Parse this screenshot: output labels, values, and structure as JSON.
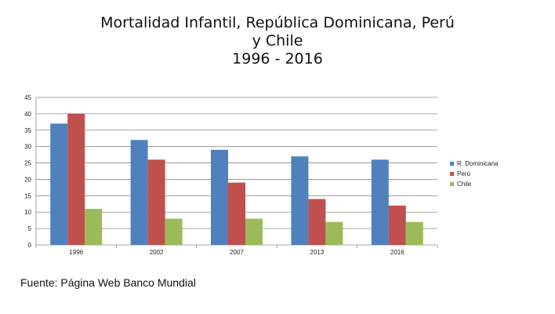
{
  "title_lines": [
    "Mortalidad Infantil, República Dominicana, Perú",
    "y Chile",
    "1996 - 2016"
  ],
  "source": "Fuente: Página Web Banco Mundial",
  "chart_data": {
    "type": "bar",
    "title": "Mortalidad Infantil, República Dominicana, Perú y Chile 1996 - 2016",
    "categories": [
      "1996",
      "2002",
      "2007",
      "2013",
      "2016"
    ],
    "series": [
      {
        "name": "R. Dominicana",
        "color": "#4f81bd",
        "values": [
          37,
          32,
          29,
          27,
          26
        ]
      },
      {
        "name": "Perú",
        "color": "#c0504d",
        "values": [
          40,
          26,
          19,
          14,
          12
        ]
      },
      {
        "name": "Chile",
        "color": "#9bbb59",
        "values": [
          11,
          8,
          8,
          7,
          7
        ]
      }
    ],
    "ylim": [
      0,
      45
    ],
    "yticks": [
      0,
      5,
      10,
      15,
      20,
      25,
      30,
      35,
      40,
      45
    ],
    "xlabel": "",
    "ylabel": "",
    "grid": true,
    "legend": "right"
  }
}
